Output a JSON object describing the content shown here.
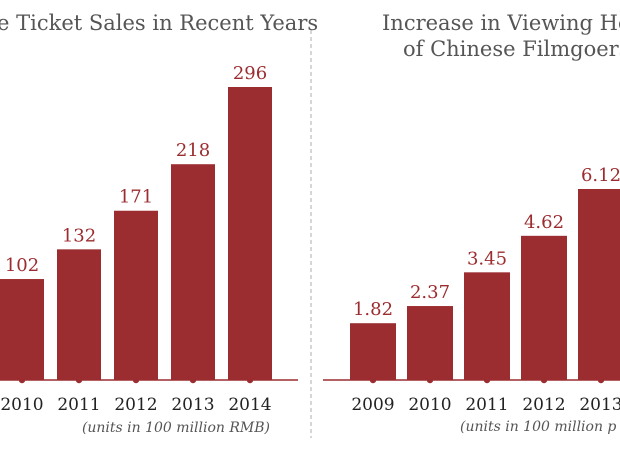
{
  "colors": {
    "bar": "#9b2d30",
    "axis": "#9b2d30",
    "divider": "#bbbbbb"
  },
  "chart_data": [
    {
      "type": "bar",
      "title": "e Ticket Sales in Recent Years",
      "categories": [
        "2010",
        "2011",
        "2012",
        "2013",
        "2014"
      ],
      "values": [
        102,
        132,
        171,
        218,
        296
      ],
      "labels": [
        "102",
        "132",
        "171",
        "218",
        "296"
      ],
      "note": "(units in 100 million RMB)",
      "ylim": [
        0,
        296
      ]
    },
    {
      "type": "bar",
      "title": [
        "Increase in Viewing Hou",
        "of Chinese Filmgoers"
      ],
      "categories": [
        "2009",
        "2010",
        "2011",
        "2012",
        "2013"
      ],
      "values": [
        1.82,
        2.37,
        3.45,
        4.62,
        6.12
      ],
      "labels": [
        "1.82",
        "2.37",
        "3.45",
        "4.62",
        "6.12"
      ],
      "note": "(units in 100 million p",
      "ylim": [
        0,
        6.12
      ]
    }
  ]
}
